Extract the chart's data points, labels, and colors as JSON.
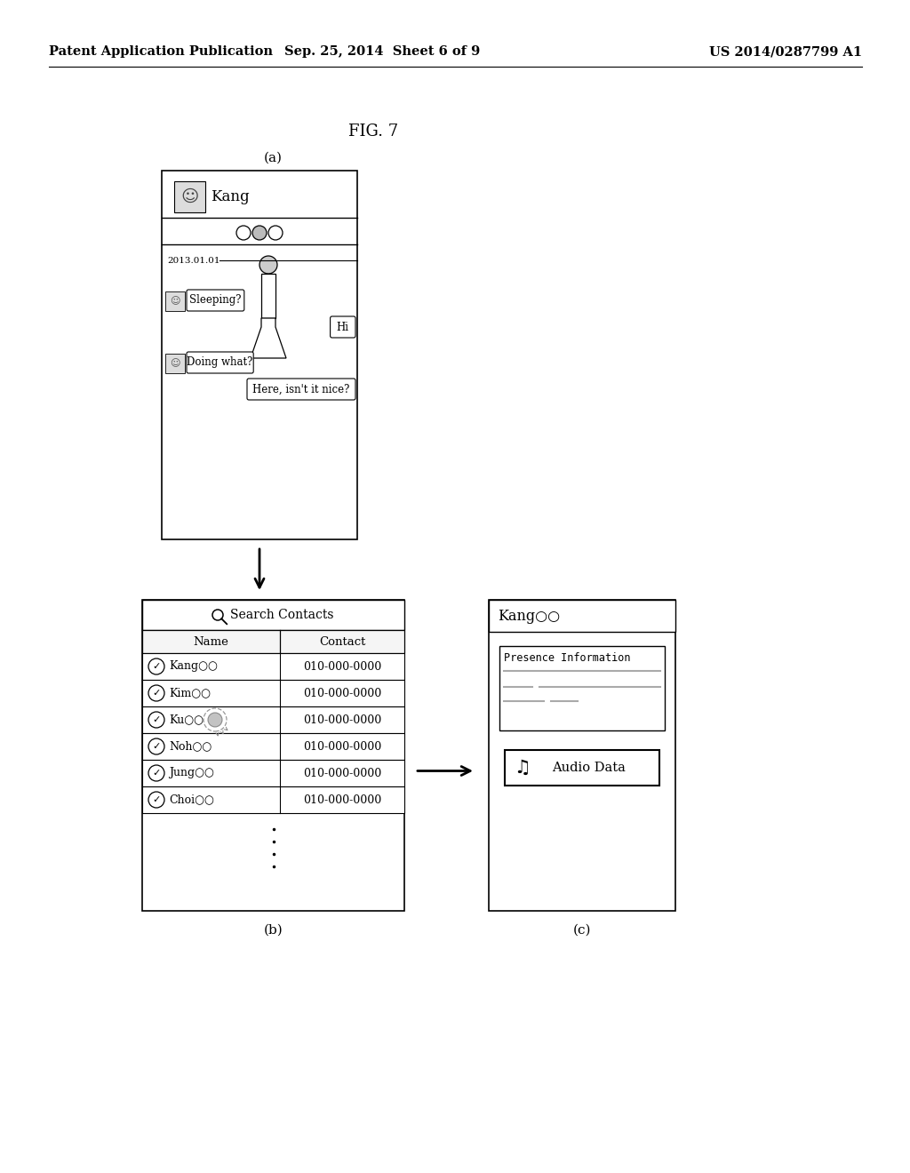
{
  "background_color": "#ffffff",
  "header_text_left": "Patent Application Publication",
  "header_text_center": "Sep. 25, 2014  Sheet 6 of 9",
  "header_text_right": "US 2014/0287799 A1",
  "fig_label": "FIG. 7",
  "panel_a_label": "(a)",
  "panel_b_label": "(b)",
  "panel_c_label": "(c)",
  "chat_title": "Kang",
  "chat_date": "2013.01.01",
  "search_title": "Search Contacts",
  "table_headers": [
    "Name",
    "Contact"
  ],
  "contacts": [
    [
      "Kang○○",
      "010-000-0000"
    ],
    [
      "Kim○○",
      "010-000-0000"
    ],
    [
      "Ku○○",
      "010-000-0000"
    ],
    [
      "Noh○○",
      "010-000-0000"
    ],
    [
      "Jung○○",
      "010-000-0000"
    ],
    [
      "Choi○○",
      "010-000-0000"
    ]
  ],
  "profile_title": "Kang○○",
  "presence_label": "Presence Information",
  "audio_label": "Audio Data",
  "chat_left_msgs": [
    "Sleeping?",
    "Doing what?"
  ],
  "chat_right_msgs": [
    "Hi",
    "Here, isn't it nice?"
  ]
}
